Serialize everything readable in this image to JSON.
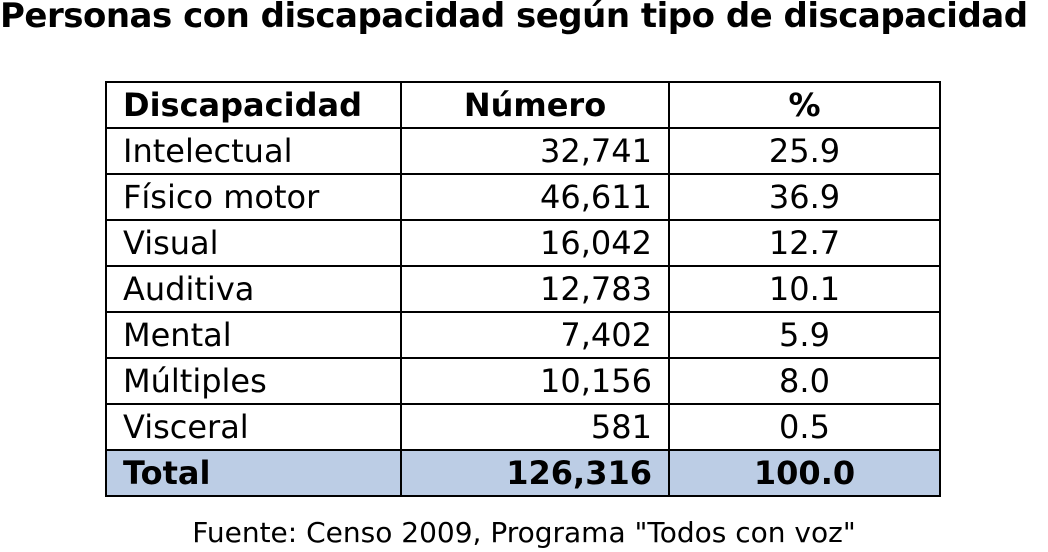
{
  "title": "Personas con discapacidad según tipo de discapacidad",
  "table": {
    "headers": [
      "Discapacidad",
      "Número",
      "%"
    ],
    "rows": [
      {
        "name": "Intelectual",
        "number": "32,741",
        "percent": "25.9"
      },
      {
        "name": "Físico motor",
        "number": "46,611",
        "percent": "36.9"
      },
      {
        "name": "Visual",
        "number": "16,042",
        "percent": "12.7"
      },
      {
        "name": "Auditiva",
        "number": "12,783",
        "percent": "10.1"
      },
      {
        "name": "Mental",
        "number": "7,402",
        "percent": "5.9"
      },
      {
        "name": "Múltiples",
        "number": "10,156",
        "percent": "8.0"
      },
      {
        "name": "Visceral",
        "number": "581",
        "percent": "0.5"
      }
    ],
    "total": {
      "name": "Total",
      "number": "126,316",
      "percent": "100.0"
    },
    "total_row_color": "#bccde5"
  },
  "source": "Fuente: Censo 2009,  Programa \"Todos con voz\""
}
